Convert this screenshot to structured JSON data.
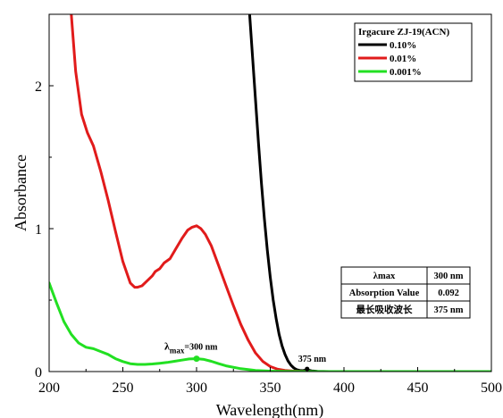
{
  "chart_data": {
    "type": "line",
    "title": "",
    "xlabel": "Wavelength(nm)",
    "ylabel": "Absorbance",
    "xlim": [
      200,
      500
    ],
    "ylim": [
      0,
      2.5
    ],
    "x_ticks": [
      "200",
      "250",
      "300",
      "350",
      "400",
      "450",
      "500"
    ],
    "y_ticks": [
      "0",
      "1",
      "2"
    ],
    "legend": {
      "title": "Irgacure ZJ-19(ACN)",
      "placement": "top-right"
    },
    "series": [
      {
        "name": "0.10%",
        "color": "#000000",
        "x": [
          336,
          338,
          340,
          342,
          344,
          346,
          348,
          350,
          352,
          354,
          356,
          358,
          360,
          362,
          364,
          366,
          368,
          370,
          372,
          374,
          375,
          378,
          382,
          390,
          400,
          420,
          450,
          480,
          500
        ],
        "y": [
          2.5,
          2.2,
          1.9,
          1.6,
          1.32,
          1.07,
          0.85,
          0.66,
          0.5,
          0.37,
          0.26,
          0.18,
          0.12,
          0.075,
          0.045,
          0.025,
          0.013,
          0.008,
          0.006,
          0.01,
          0.012,
          0.005,
          0.002,
          0.0,
          0.0,
          0.0,
          0.0,
          0.0,
          0.0
        ]
      },
      {
        "name": "0.01%",
        "color": "#e11b1b",
        "x": [
          215,
          218,
          222,
          226,
          230,
          235,
          240,
          245,
          250,
          255,
          258,
          260,
          263,
          266,
          270,
          272,
          275,
          278,
          282,
          286,
          290,
          294,
          297,
          300,
          303,
          306,
          310,
          315,
          320,
          325,
          330,
          335,
          340,
          345,
          350,
          355,
          360,
          365,
          370,
          380,
          400,
          450,
          500
        ],
        "y": [
          2.5,
          2.1,
          1.8,
          1.67,
          1.58,
          1.4,
          1.2,
          0.98,
          0.77,
          0.62,
          0.59,
          0.59,
          0.6,
          0.63,
          0.67,
          0.7,
          0.72,
          0.76,
          0.79,
          0.86,
          0.93,
          0.99,
          1.01,
          1.02,
          1.0,
          0.96,
          0.88,
          0.74,
          0.6,
          0.46,
          0.33,
          0.22,
          0.13,
          0.07,
          0.035,
          0.016,
          0.008,
          0.004,
          0.002,
          0.0,
          0.0,
          0.0,
          0.0
        ]
      },
      {
        "name": "0.001%",
        "color": "#22e022",
        "x": [
          200,
          205,
          210,
          215,
          220,
          225,
          230,
          235,
          240,
          245,
          250,
          255,
          260,
          265,
          270,
          275,
          280,
          285,
          290,
          295,
          300,
          305,
          310,
          315,
          320,
          330,
          340,
          350,
          360,
          380,
          400,
          450,
          500
        ],
        "y": [
          0.62,
          0.48,
          0.35,
          0.26,
          0.2,
          0.17,
          0.16,
          0.14,
          0.12,
          0.09,
          0.07,
          0.055,
          0.05,
          0.05,
          0.053,
          0.058,
          0.064,
          0.072,
          0.08,
          0.088,
          0.09,
          0.085,
          0.072,
          0.055,
          0.04,
          0.02,
          0.008,
          0.003,
          0.001,
          0.0,
          0.0,
          0.0,
          0.0
        ]
      }
    ],
    "annotations": [
      {
        "lambda_symbol": "λ",
        "subscript": "max",
        "text": "=300 nm",
        "x": 300,
        "y": 0.09
      },
      {
        "text": "375 nm",
        "x": 375,
        "y": 0.012
      }
    ],
    "info_table": [
      [
        "λmax",
        "300 nm"
      ],
      [
        "Absorption Value",
        "0.092"
      ],
      [
        "最长吸收波长",
        "375 nm"
      ]
    ]
  }
}
